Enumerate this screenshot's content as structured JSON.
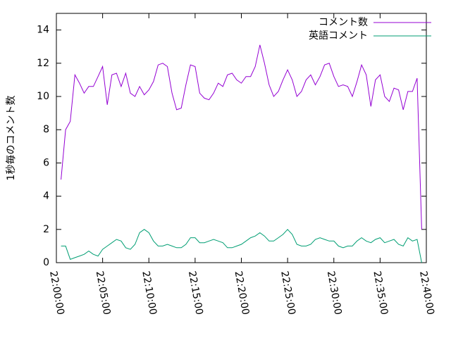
{
  "chart_data": {
    "type": "line",
    "y_label": "1秒毎のコメント数",
    "x": [
      "22:00:30",
      "22:01:00",
      "22:01:30",
      "22:02:00",
      "22:02:30",
      "22:03:00",
      "22:03:30",
      "22:04:00",
      "22:04:30",
      "22:05:00",
      "22:05:30",
      "22:06:00",
      "22:06:30",
      "22:07:00",
      "22:07:30",
      "22:08:00",
      "22:08:30",
      "22:09:00",
      "22:09:30",
      "22:10:00",
      "22:10:30",
      "22:11:00",
      "22:11:30",
      "22:12:00",
      "22:12:30",
      "22:13:00",
      "22:13:30",
      "22:14:00",
      "22:14:30",
      "22:15:00",
      "22:15:30",
      "22:16:00",
      "22:16:30",
      "22:17:00",
      "22:17:30",
      "22:18:00",
      "22:18:30",
      "22:19:00",
      "22:19:30",
      "22:20:00",
      "22:20:30",
      "22:21:00",
      "22:21:30",
      "22:22:00",
      "22:22:30",
      "22:23:00",
      "22:23:30",
      "22:24:00",
      "22:24:30",
      "22:25:00",
      "22:25:30",
      "22:26:00",
      "22:26:30",
      "22:27:00",
      "22:27:30",
      "22:28:00",
      "22:28:30",
      "22:29:00",
      "22:29:30",
      "22:30:00",
      "22:30:30",
      "22:31:00",
      "22:31:30",
      "22:32:00",
      "22:32:30",
      "22:33:00",
      "22:33:30",
      "22:34:00",
      "22:34:30",
      "22:35:00",
      "22:35:30",
      "22:36:00",
      "22:36:30",
      "22:37:00",
      "22:37:30",
      "22:38:00",
      "22:38:30",
      "22:39:00",
      "22:39:30"
    ],
    "series": [
      {
        "name": "コメント数",
        "color": "#9400d3",
        "values": [
          5.0,
          8.0,
          8.5,
          11.3,
          10.8,
          10.2,
          10.6,
          10.6,
          11.2,
          11.8,
          9.5,
          11.3,
          11.4,
          10.6,
          11.4,
          10.2,
          10.0,
          10.6,
          10.1,
          10.4,
          10.9,
          11.9,
          12.0,
          11.8,
          10.2,
          9.2,
          9.3,
          10.7,
          11.9,
          11.8,
          10.2,
          9.9,
          9.8,
          10.2,
          10.8,
          10.6,
          11.3,
          11.4,
          11.0,
          10.8,
          11.2,
          11.2,
          11.8,
          13.1,
          12.0,
          10.7,
          10.0,
          10.3,
          11.0,
          11.6,
          11.0,
          10.0,
          10.3,
          11.0,
          11.3,
          10.7,
          11.2,
          11.9,
          12.0,
          11.2,
          10.6,
          10.7,
          10.6,
          10.0,
          10.9,
          11.9,
          11.3,
          9.4,
          11.0,
          11.3,
          10.0,
          9.7,
          10.5,
          10.4,
          9.2,
          10.3,
          10.3,
          11.1,
          2.0
        ]
      },
      {
        "name": "英語コメント",
        "color": "#009e73",
        "values": [
          1.0,
          1.0,
          0.2,
          0.3,
          0.4,
          0.5,
          0.7,
          0.5,
          0.4,
          0.8,
          1.0,
          1.2,
          1.4,
          1.3,
          0.9,
          0.8,
          1.1,
          1.8,
          2.0,
          1.8,
          1.3,
          1.0,
          1.0,
          1.1,
          1.0,
          0.9,
          0.9,
          1.1,
          1.5,
          1.5,
          1.2,
          1.2,
          1.3,
          1.4,
          1.3,
          1.2,
          0.9,
          0.9,
          1.0,
          1.1,
          1.3,
          1.5,
          1.6,
          1.8,
          1.6,
          1.3,
          1.3,
          1.5,
          1.7,
          2.0,
          1.7,
          1.1,
          1.0,
          1.0,
          1.1,
          1.4,
          1.5,
          1.4,
          1.3,
          1.3,
          1.0,
          0.9,
          1.0,
          1.0,
          1.3,
          1.5,
          1.3,
          1.2,
          1.4,
          1.5,
          1.2,
          1.3,
          1.4,
          1.1,
          1.0,
          1.5,
          1.3,
          1.4,
          0.0
        ]
      }
    ],
    "xlim": [
      "22:00:00",
      "22:40:00"
    ],
    "xticks": [
      "22:00:00",
      "22:05:00",
      "22:10:00",
      "22:15:00",
      "22:20:00",
      "22:25:00",
      "22:30:00",
      "22:35:00",
      "22:40:00"
    ],
    "ylim": [
      0,
      15
    ],
    "yticks": [
      0,
      2,
      4,
      6,
      8,
      10,
      12,
      14
    ],
    "legend": "top-right"
  }
}
